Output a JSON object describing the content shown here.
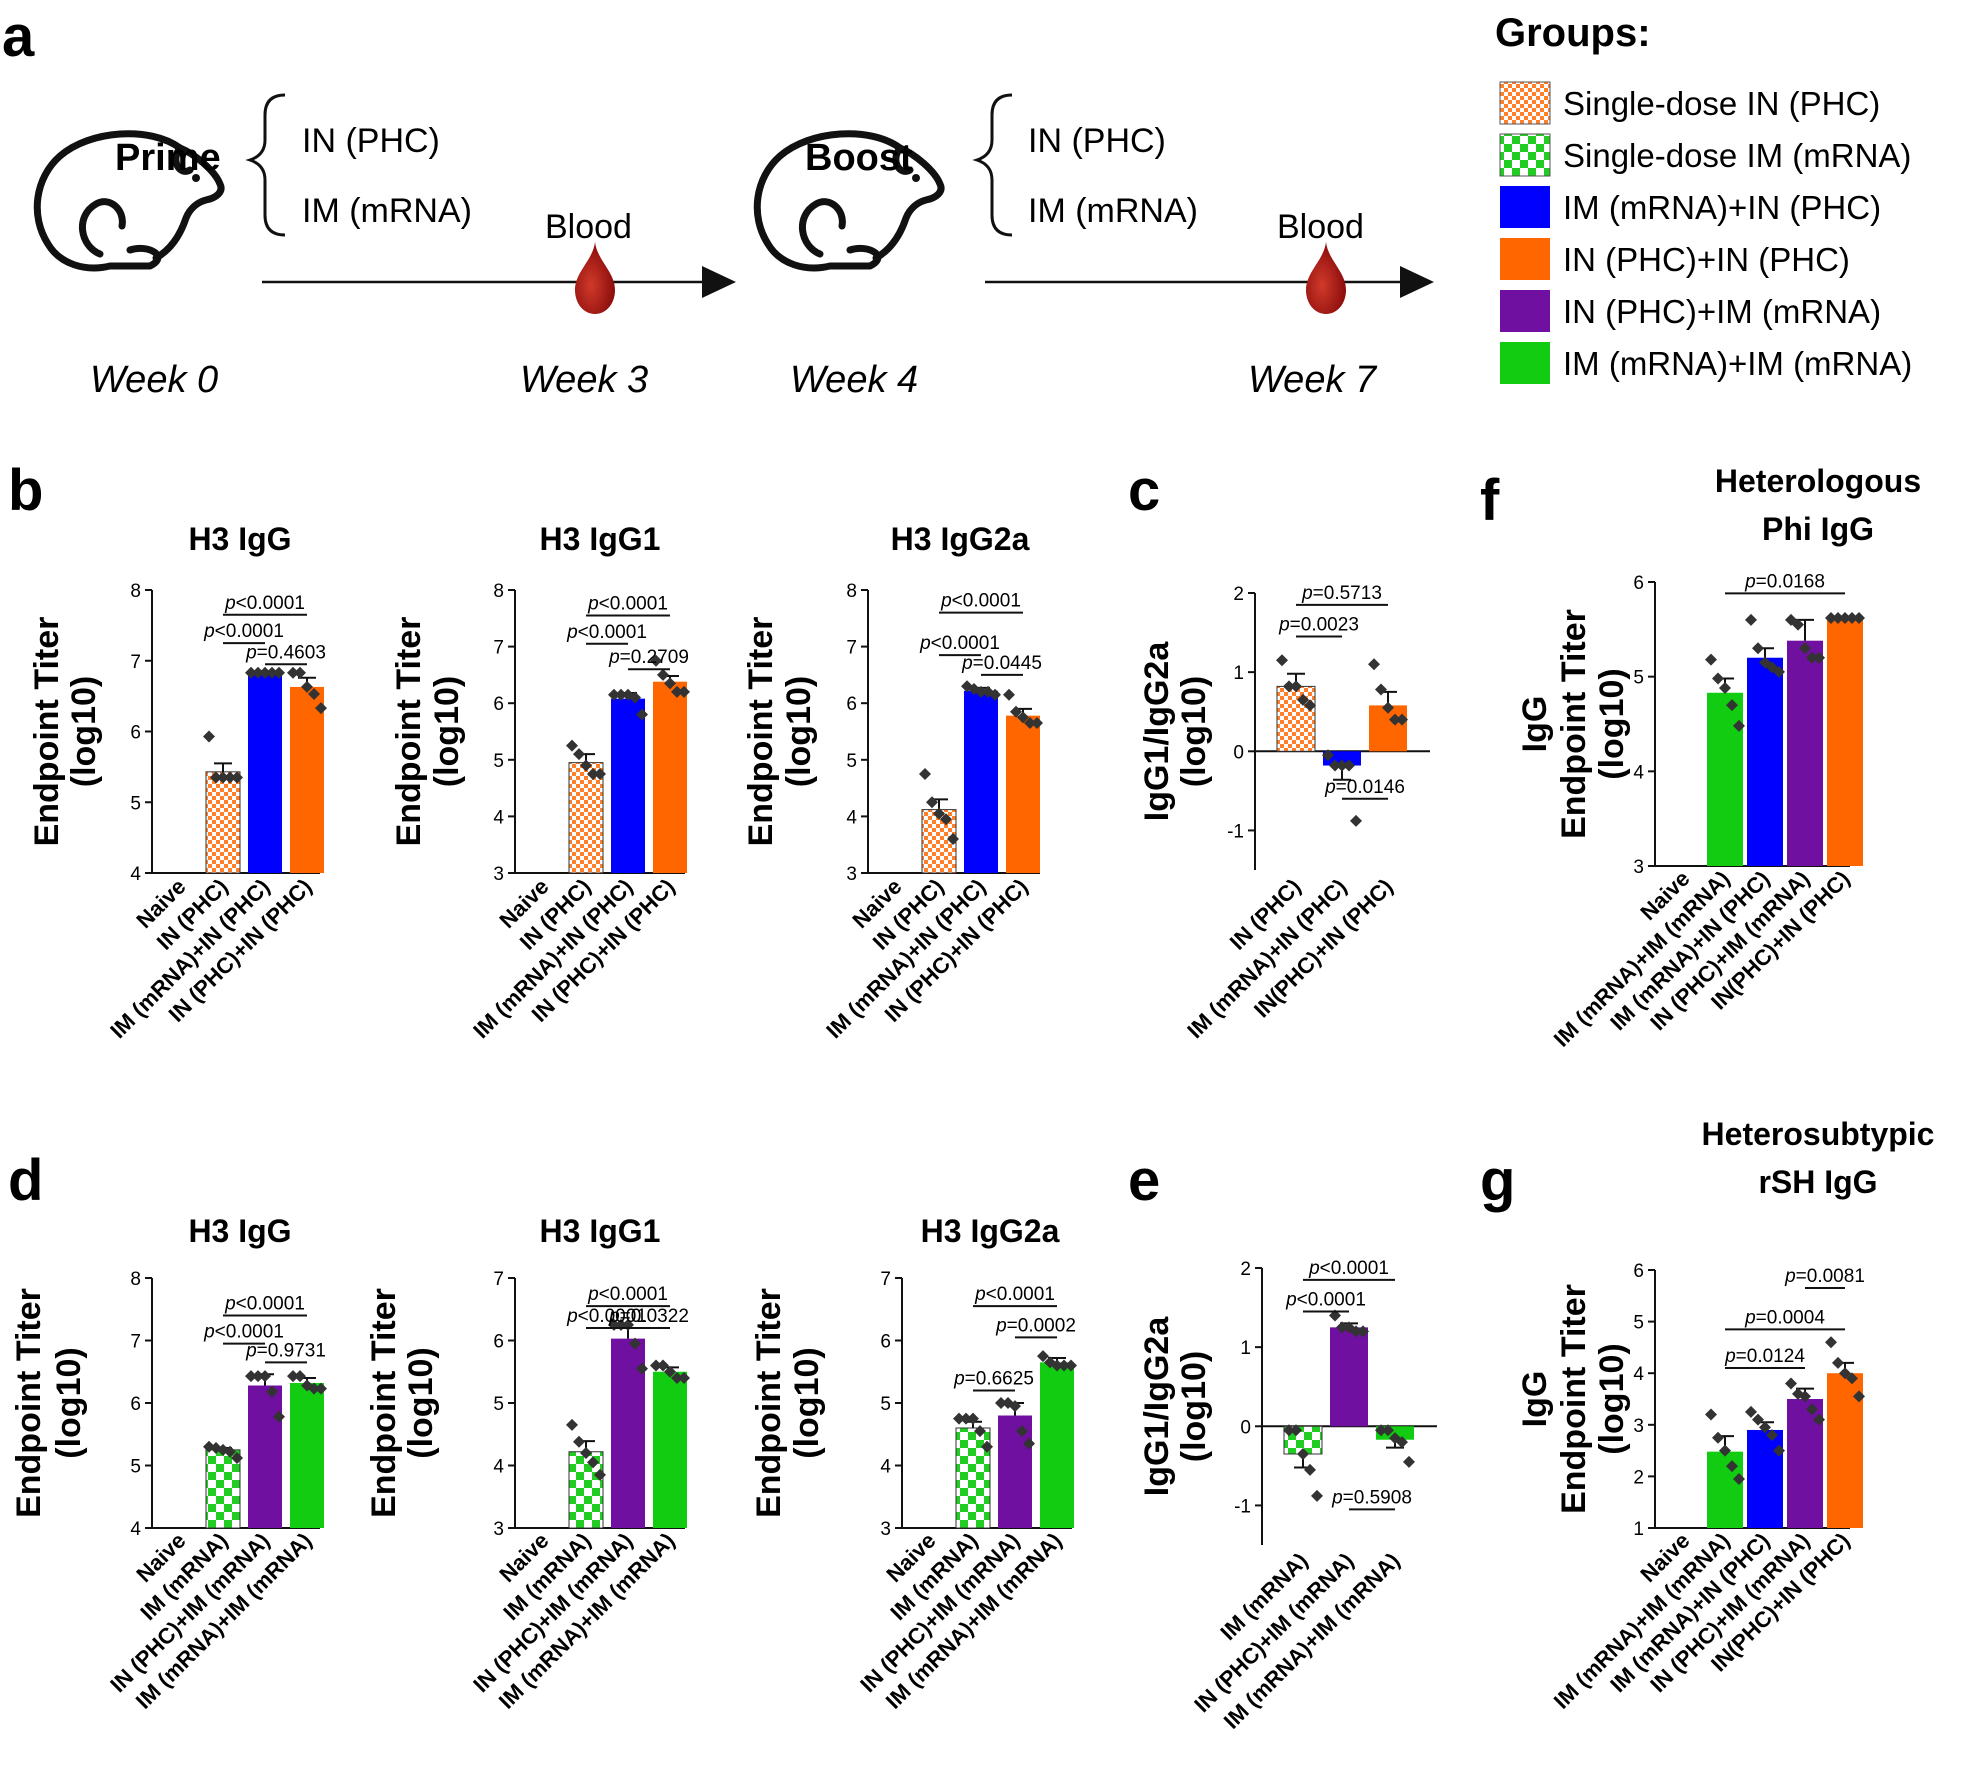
{
  "colors": {
    "orange": "#ff6600",
    "blue": "#0000ff",
    "purple": "#7010a0",
    "green": "#11cc11",
    "hatch_orange": "#ff7f2a",
    "hatch_green": "#22cc22",
    "blood": "#a01818"
  },
  "schematic": {
    "panel": "a",
    "prime": {
      "label": "Prime",
      "options": [
        "IN (PHC)",
        "IM (mRNA)"
      ]
    },
    "boost": {
      "label": "Boost",
      "options": [
        "IN (PHC)",
        "IM (mRNA)"
      ]
    },
    "blood1": "Blood",
    "blood2": "Blood",
    "weeks": [
      "Week 0",
      "Week 3",
      "Week 4",
      "Week 7"
    ],
    "icons": [
      "mouse-icon",
      "blood-drop-icon",
      "arrow-icon"
    ]
  },
  "legend": {
    "title": "Groups:",
    "items": [
      {
        "label": "Single-dose IN (PHC)",
        "fill": "hatch-orange"
      },
      {
        "label": "Single-dose IM (mRNA)",
        "fill": "hatch-green"
      },
      {
        "label": "IM (mRNA)+IN (PHC)",
        "fill": "blue"
      },
      {
        "label": "IN (PHC)+IN (PHC)",
        "fill": "orange"
      },
      {
        "label": "IN (PHC)+IM (mRNA)",
        "fill": "purple"
      },
      {
        "label": "IM (mRNA)+IM (mRNA)",
        "fill": "green"
      }
    ]
  },
  "chart_data": [
    {
      "type": "bar",
      "panel": "b",
      "title": "H3 IgG",
      "ylabel": [
        "Endpoint Titer",
        "(log10)"
      ],
      "ylim": [
        4,
        8
      ],
      "yticks": [
        4,
        5,
        6,
        7,
        8
      ],
      "categories": [
        "Naive",
        "IN (PHC)",
        "IM (mRNA)+IN (PHC)",
        "IN (PHC)+IN (PHC)"
      ],
      "values": [
        null,
        5.43,
        6.83,
        6.63
      ],
      "errors": [
        0,
        0.12,
        0.02,
        0.13
      ],
      "fills": [
        "none",
        "hatch-orange",
        "blue",
        "orange"
      ],
      "points": [
        [],
        [
          5.93,
          5.35,
          5.35,
          5.35,
          5.35
        ],
        [
          6.83,
          6.83,
          6.83,
          6.83,
          6.83
        ],
        [
          6.83,
          6.83,
          6.63,
          6.53,
          6.33
        ]
      ],
      "comparisons": [
        {
          "label": "p<0.0001",
          "from": 1,
          "to": 3,
          "y": 7.65
        },
        {
          "label": "p<0.0001",
          "from": 1,
          "to": 2,
          "y": 7.25
        },
        {
          "label": "p=0.4603",
          "from": 2,
          "to": 3,
          "y": 6.95
        }
      ]
    },
    {
      "type": "bar",
      "panel": "b",
      "title": "H3 IgG1",
      "ylabel": [
        "Endpoint Titer",
        "(log10)"
      ],
      "ylim": [
        3,
        8
      ],
      "yticks": [
        3,
        4,
        5,
        6,
        7,
        8
      ],
      "categories": [
        "Naive",
        "IN (PHC)",
        "IM (mRNA)+IN (PHC)",
        "IN (PHC)+IN (PHC)"
      ],
      "values": [
        null,
        4.95,
        6.08,
        6.38
      ],
      "errors": [
        0,
        0.15,
        0.1,
        0.1
      ],
      "fills": [
        "none",
        "hatch-orange",
        "blue",
        "orange"
      ],
      "points": [
        [],
        [
          5.25,
          5.1,
          4.9,
          4.75,
          4.75
        ],
        [
          6.15,
          6.15,
          6.15,
          6.1,
          5.8
        ],
        [
          6.75,
          6.5,
          6.35,
          6.2,
          6.2
        ]
      ],
      "comparisons": [
        {
          "label": "p<0.0001",
          "from": 1,
          "to": 3,
          "y": 7.55
        },
        {
          "label": "p<0.0001",
          "from": 1,
          "to": 2,
          "y": 7.05
        },
        {
          "label": "p=0.2709",
          "from": 2,
          "to": 3,
          "y": 6.6
        }
      ]
    },
    {
      "type": "bar",
      "panel": "b",
      "title": "H3 IgG2a",
      "ylabel": [
        "Endpoint Titer",
        "(log10)"
      ],
      "ylim": [
        3,
        8
      ],
      "yticks": [
        3,
        4,
        5,
        6,
        7,
        8
      ],
      "categories": [
        "Naive",
        "IN (PHC)",
        "IM (mRNA)+IN (PHC)",
        "IN (PHC)+IN (PHC)"
      ],
      "values": [
        null,
        4.12,
        6.22,
        5.78
      ],
      "errors": [
        0,
        0.18,
        0.05,
        0.12
      ],
      "fills": [
        "none",
        "hatch-orange",
        "blue",
        "orange"
      ],
      "points": [
        [],
        [
          4.75,
          4.25,
          4.05,
          3.95,
          3.6
        ],
        [
          6.3,
          6.25,
          6.2,
          6.2,
          6.15
        ],
        [
          6.15,
          5.85,
          5.75,
          5.65,
          5.65
        ]
      ],
      "comparisons": [
        {
          "label": "p<0.0001",
          "from": 1,
          "to": 3,
          "y": 7.6
        },
        {
          "label": "p<0.0001",
          "from": 1,
          "to": 2,
          "y": 6.85
        },
        {
          "label": "p=0.0445",
          "from": 2,
          "to": 3,
          "y": 6.5
        }
      ]
    },
    {
      "type": "bar",
      "panel": "c",
      "title": "",
      "ylabel": [
        "IgG1/IgG2a",
        "(log10)"
      ],
      "ylim": [
        -1.5,
        2
      ],
      "yticks": [
        -1,
        0,
        1,
        2
      ],
      "categories": [
        "IN (PHC)",
        "IM (mRNA)+IN (PHC)",
        "IN(PHC)+IN (PHC)"
      ],
      "values": [
        0.82,
        -0.18,
        0.58
      ],
      "errors": [
        0.16,
        0.18,
        0.17
      ],
      "fills": [
        "hatch-orange",
        "blue",
        "orange"
      ],
      "points": [
        [
          1.15,
          0.82,
          0.82,
          0.65,
          0.58
        ],
        [
          -0.05,
          -0.18,
          -0.18,
          -0.18,
          -0.88
        ],
        [
          1.1,
          0.78,
          0.55,
          0.4,
          0.4
        ]
      ],
      "comparisons": [
        {
          "label": "p=0.5713",
          "from": 0,
          "to": 2,
          "y": 1.85
        },
        {
          "label": "p=0.0023",
          "from": 0,
          "to": 1,
          "y": 1.45
        },
        {
          "label": "p=0.0146",
          "from": 1,
          "to": 2,
          "y": -0.6
        }
      ]
    },
    {
      "type": "bar",
      "panel": "d",
      "title": "H3 IgG",
      "ylabel": [
        "Endpoint Titer",
        "(log10)"
      ],
      "ylim": [
        4,
        8
      ],
      "yticks": [
        4,
        5,
        6,
        7,
        8
      ],
      "categories": [
        "Naive",
        "IM (mRNA)",
        "IN (PHC)+IM (mRNA)",
        "IM (mRNA)+IM (mRNA)"
      ],
      "values": [
        null,
        5.25,
        6.28,
        6.32
      ],
      "errors": [
        0,
        0.03,
        0.18,
        0.08
      ],
      "fills": [
        "none",
        "hatch-green",
        "purple",
        "green"
      ],
      "points": [
        [],
        [
          5.3,
          5.28,
          5.25,
          5.22,
          5.12
        ],
        [
          6.43,
          6.43,
          6.43,
          6.18,
          5.78
        ],
        [
          6.43,
          6.43,
          6.28,
          6.23,
          6.23
        ]
      ],
      "comparisons": [
        {
          "label": "p<0.0001",
          "from": 1,
          "to": 3,
          "y": 7.4
        },
        {
          "label": "p<0.0001",
          "from": 1,
          "to": 2,
          "y": 6.95
        },
        {
          "label": "p=0.9731",
          "from": 2,
          "to": 3,
          "y": 6.65
        }
      ]
    },
    {
      "type": "bar",
      "panel": "d",
      "title": "H3 IgG1",
      "ylabel": [
        "Endpoint Titer",
        "(log10)"
      ],
      "ylim": [
        3,
        7
      ],
      "yticks": [
        3,
        4,
        5,
        6,
        7
      ],
      "categories": [
        "Naive",
        "IM (mRNA)",
        "IN (PHC)+IM (mRNA)",
        "IM (mRNA)+IM (mRNA)"
      ],
      "values": [
        null,
        4.22,
        6.03,
        5.5
      ],
      "errors": [
        0,
        0.17,
        0.17,
        0.07
      ],
      "fills": [
        "none",
        "hatch-green",
        "purple",
        "green"
      ],
      "points": [
        [],
        [
          4.65,
          4.38,
          4.2,
          4.05,
          3.85
        ],
        [
          6.25,
          6.25,
          6.25,
          5.95,
          5.55
        ],
        [
          5.6,
          5.6,
          5.5,
          5.4,
          5.4
        ]
      ],
      "comparisons": [
        {
          "label": "p<0.0001",
          "from": 1,
          "to": 3,
          "y": 6.55
        },
        {
          "label": "p<0.0001",
          "from": 1,
          "to": 2,
          "y": 6.2
        },
        {
          "label": "p=0.0322",
          "from": 2,
          "to": 3,
          "y": 6.2
        }
      ]
    },
    {
      "type": "bar",
      "panel": "d",
      "title": "H3 IgG2a",
      "ylabel": [
        "Endpoint Titer",
        "(log10)"
      ],
      "ylim": [
        3,
        7
      ],
      "yticks": [
        3,
        4,
        5,
        6,
        7
      ],
      "categories": [
        "Naive",
        "IM (mRNA)",
        "IN (PHC)+IM (mRNA)",
        "IM (mRNA)+IM (mRNA)"
      ],
      "values": [
        null,
        4.6,
        4.8,
        5.65
      ],
      "errors": [
        0,
        0.1,
        0.2,
        0.07
      ],
      "fills": [
        "none",
        "hatch-green",
        "purple",
        "green"
      ],
      "points": [
        [],
        [
          4.75,
          4.75,
          4.75,
          4.55,
          4.3
        ],
        [
          5.0,
          5.0,
          4.95,
          4.55,
          4.35
        ],
        [
          5.75,
          5.65,
          5.6,
          5.6,
          5.6
        ]
      ],
      "comparisons": [
        {
          "label": "p<0.0001",
          "from": 1,
          "to": 3,
          "y": 6.55
        },
        {
          "label": "p=0.0002",
          "from": 2,
          "to": 3,
          "y": 6.05
        },
        {
          "label": "p=0.6625",
          "from": 1,
          "to": 2,
          "y": 5.2
        }
      ]
    },
    {
      "type": "bar",
      "panel": "e",
      "title": "",
      "ylabel": [
        "IgG1/IgG2a",
        "(log10)"
      ],
      "ylim": [
        -1.5,
        2
      ],
      "yticks": [
        -1,
        0,
        1,
        2
      ],
      "categories": [
        "IM (mRNA)",
        "IN (PHC)+IM (mRNA)",
        "IM (mRNA)+IM (mRNA)"
      ],
      "values": [
        -0.35,
        1.25,
        -0.17
      ],
      "errors": [
        0.17,
        0.05,
        0.1
      ],
      "fills": [
        "hatch-green",
        "purple",
        "green"
      ],
      "points": [
        [
          -0.05,
          -0.05,
          -0.35,
          -0.55,
          -0.88
        ],
        [
          1.4,
          1.25,
          1.25,
          1.2,
          1.2
        ],
        [
          -0.05,
          -0.05,
          -0.15,
          -0.2,
          -0.45
        ]
      ],
      "comparisons": [
        {
          "label": "p<0.0001",
          "from": 0,
          "to": 2,
          "y": 1.85
        },
        {
          "label": "p<0.0001",
          "from": 0,
          "to": 1,
          "y": 1.45
        },
        {
          "label": "p=0.5908",
          "from": 1,
          "to": 2,
          "y": -1.05
        }
      ]
    },
    {
      "type": "bar",
      "panel": "f",
      "title": "Heterologous Phi IgG",
      "ylabel": [
        "IgG",
        "Endpoint Titer",
        "(log10)"
      ],
      "ylim": [
        3,
        6
      ],
      "yticks": [
        3,
        4,
        5,
        6
      ],
      "categories": [
        "Naive",
        "IM (mRNA)+IM (mRNA)",
        "IM (mRNA)+IN (PHC)",
        "IN (PHC)+IM (mRNA)",
        "IN(PHC)+IN (PHC)"
      ],
      "values": [
        null,
        4.83,
        5.2,
        5.38,
        5.62
      ],
      "errors": [
        0,
        0.15,
        0.1,
        0.22,
        0.01
      ],
      "fills": [
        "none",
        "green",
        "blue",
        "purple",
        "orange"
      ],
      "points": [
        [],
        [
          5.18,
          4.98,
          4.88,
          4.7,
          4.48
        ],
        [
          5.6,
          5.3,
          5.15,
          5.1,
          5.05
        ],
        [
          5.6,
          5.55,
          5.3,
          5.2,
          5.2
        ],
        [
          5.62,
          5.62,
          5.62,
          5.62,
          5.62
        ]
      ],
      "comparisons": [
        {
          "label": "p=0.0168",
          "from": 1,
          "to": 4,
          "y": 5.88
        }
      ]
    },
    {
      "type": "bar",
      "panel": "g",
      "title": "Heterosubtypic rSH IgG",
      "ylabel": [
        "IgG",
        "Endpoint Titer",
        "(log10)"
      ],
      "ylim": [
        1,
        6
      ],
      "yticks": [
        1,
        2,
        3,
        4,
        5,
        6
      ],
      "categories": [
        "Naive",
        "IM (mRNA)+IM (mRNA)",
        "IM (mRNA)+IN (PHC)",
        "IN (PHC)+IM (mRNA)",
        "IN(PHC)+IN (PHC)"
      ],
      "values": [
        null,
        2.48,
        2.9,
        3.5,
        4.0
      ],
      "errors": [
        0,
        0.3,
        0.15,
        0.2,
        0.2
      ],
      "fills": [
        "none",
        "green",
        "blue",
        "purple",
        "orange"
      ],
      "points": [
        [],
        [
          3.2,
          2.75,
          2.5,
          2.2,
          1.95
        ],
        [
          3.25,
          3.1,
          2.95,
          2.8,
          2.5
        ],
        [
          3.8,
          3.6,
          3.55,
          3.3,
          3.1
        ],
        [
          4.6,
          4.2,
          4.0,
          3.9,
          3.55
        ]
      ],
      "comparisons": [
        {
          "label": "p=0.0081",
          "from": 3,
          "to": 4,
          "y": 5.65
        },
        {
          "label": "p=0.0004",
          "from": 1,
          "to": 4,
          "y": 4.85
        },
        {
          "label": "p=0.0124",
          "from": 1,
          "to": 3,
          "y": 4.1
        }
      ]
    }
  ]
}
